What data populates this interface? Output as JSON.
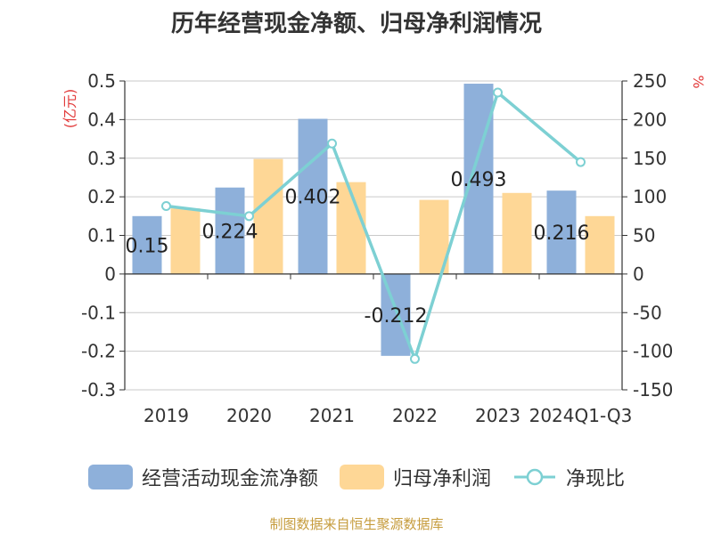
{
  "title": "历年经营现金净额、归母净利润情况",
  "source": "制图数据来自恒生聚源数据库",
  "colors": {
    "bar_cash": "#8eb0da",
    "bar_profit": "#fed796",
    "line_ratio": "#7dd0d3",
    "axis_unit": "#e23b3b",
    "source_text": "#c69c3d",
    "grid": "#c9c9c9",
    "axis": "#333333"
  },
  "chart_data": {
    "type": "bar",
    "categories": [
      "2019",
      "2020",
      "2021",
      "2022",
      "2023",
      "2024Q1-Q3"
    ],
    "series": [
      {
        "name": "经营活动现金流净额",
        "type": "bar",
        "axis": "left",
        "values": [
          0.15,
          0.224,
          0.402,
          -0.212,
          0.493,
          0.216
        ]
      },
      {
        "name": "归母净利润",
        "type": "bar",
        "axis": "left",
        "values": [
          0.17,
          0.298,
          0.238,
          0.192,
          0.21,
          0.15
        ]
      },
      {
        "name": "净现比",
        "type": "line",
        "axis": "right",
        "values": [
          88,
          75,
          169,
          -110,
          235,
          145
        ]
      }
    ],
    "data_labels": [
      "0.15",
      "0.224",
      "0.402",
      "-0.212",
      "0.493",
      "0.216"
    ],
    "y_left": {
      "unit": "(亿元)",
      "ylim": [
        -0.3,
        0.5
      ],
      "ticks": [
        "-0.3",
        "-0.2",
        "-0.1",
        "0",
        "0.1",
        "0.2",
        "0.3",
        "0.4",
        "0.5"
      ]
    },
    "y_right": {
      "unit": "%",
      "ylim": [
        -150,
        250
      ],
      "ticks": [
        "-150",
        "-100",
        "-50",
        "0",
        "50",
        "100",
        "150",
        "200",
        "250"
      ]
    },
    "grid": true,
    "legend_position": "bottom"
  }
}
